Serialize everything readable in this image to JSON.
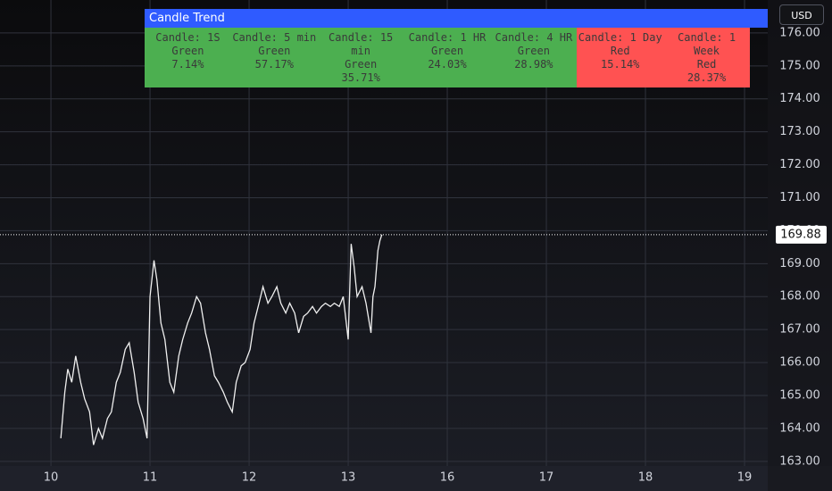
{
  "chart_data": {
    "type": "line",
    "currency": "USD",
    "xlim": [
      -0.514,
      7.234
    ],
    "xticks": [
      {
        "value": 0,
        "label": "10"
      },
      {
        "value": 1,
        "label": "11"
      },
      {
        "value": 2,
        "label": "12"
      },
      {
        "value": 3,
        "label": "13"
      },
      {
        "value": 4,
        "label": "16"
      },
      {
        "value": 5,
        "label": "17"
      },
      {
        "value": 6,
        "label": "18"
      },
      {
        "value": 7,
        "label": "19"
      }
    ],
    "ylim": [
      162.86,
      177.0
    ],
    "yticks": [
      {
        "value": 163,
        "label": "163.00"
      },
      {
        "value": 164,
        "label": "164.00"
      },
      {
        "value": 165,
        "label": "165.00"
      },
      {
        "value": 166,
        "label": "166.00"
      },
      {
        "value": 167,
        "label": "167.00"
      },
      {
        "value": 168,
        "label": "168.00"
      },
      {
        "value": 169,
        "label": "169.00"
      },
      {
        "value": 170,
        "label": "170.00"
      },
      {
        "value": 171,
        "label": "171.00"
      },
      {
        "value": 172,
        "label": "172.00"
      },
      {
        "value": 173,
        "label": "173.00"
      },
      {
        "value": 174,
        "label": "174.00"
      },
      {
        "value": 175,
        "label": "175.00"
      },
      {
        "value": 176,
        "label": "176.00"
      }
    ],
    "grid": true,
    "last_price": 169.88,
    "series": [
      {
        "color": "#f0f0f0",
        "x": [
          0.1,
          0.14,
          0.17,
          0.21,
          0.25,
          0.3,
          0.34,
          0.39,
          0.43,
          0.48,
          0.52,
          0.57,
          0.61,
          0.66,
          0.7,
          0.75,
          0.79,
          0.84,
          0.88,
          0.93,
          0.97,
          1.0,
          1.04,
          1.07,
          1.11,
          1.15,
          1.2,
          1.24,
          1.29,
          1.33,
          1.38,
          1.42,
          1.47,
          1.51,
          1.56,
          1.6,
          1.65,
          1.69,
          1.74,
          1.78,
          1.83,
          1.87,
          1.92,
          1.96,
          2.01,
          2.05,
          2.1,
          2.14,
          2.19,
          2.23,
          2.28,
          2.32,
          2.37,
          2.41,
          2.46,
          2.5,
          2.55,
          2.59,
          2.64,
          2.68,
          2.73,
          2.77,
          2.82,
          2.86,
          2.91,
          2.95,
          3.0,
          3.03,
          3.06,
          3.09,
          3.14,
          3.18,
          3.23,
          3.25,
          3.27,
          3.3,
          3.32,
          3.34
        ],
        "values": [
          163.7,
          165.1,
          165.8,
          165.4,
          166.2,
          165.4,
          164.9,
          164.5,
          163.5,
          164.0,
          163.7,
          164.3,
          164.5,
          165.4,
          165.7,
          166.4,
          166.6,
          165.7,
          164.8,
          164.3,
          163.7,
          168.0,
          169.1,
          168.5,
          167.2,
          166.7,
          165.4,
          165.1,
          166.2,
          166.7,
          167.2,
          167.5,
          168.0,
          167.8,
          166.9,
          166.4,
          165.6,
          165.4,
          165.1,
          164.8,
          164.5,
          165.4,
          165.9,
          166.0,
          166.4,
          167.2,
          167.8,
          168.3,
          167.8,
          168.0,
          168.3,
          167.8,
          167.5,
          167.8,
          167.5,
          166.9,
          167.4,
          167.5,
          167.7,
          167.5,
          167.7,
          167.8,
          167.7,
          167.8,
          167.7,
          168.0,
          166.7,
          169.6,
          168.9,
          168.0,
          168.3,
          167.8,
          166.9,
          168.0,
          168.3,
          169.4,
          169.7,
          169.88
        ]
      }
    ]
  },
  "trend_table": {
    "title": "Candle Trend",
    "columns": [
      {
        "timeframe": "Candle: 1S",
        "trend": "Green",
        "percent": "7.14%",
        "color": "#4caf50"
      },
      {
        "timeframe": "Candle: 5 min",
        "trend": "Green",
        "percent": "57.17%",
        "color": "#4caf50"
      },
      {
        "timeframe": "Candle: 15 min",
        "trend": "Green",
        "percent": "35.71%",
        "color": "#4caf50"
      },
      {
        "timeframe": "Candle: 1 HR",
        "trend": "Green",
        "percent": "24.03%",
        "color": "#4caf50"
      },
      {
        "timeframe": "Candle: 4 HR",
        "trend": "Green",
        "percent": "28.98%",
        "color": "#4caf50"
      },
      {
        "timeframe": "Candle: 1 Day",
        "trend": "Red",
        "percent": "15.14%",
        "color": "#ff5252"
      },
      {
        "timeframe": "Candle: 1 Week",
        "trend": "Red",
        "percent": "28.37%",
        "color": "#ff5252"
      }
    ]
  }
}
